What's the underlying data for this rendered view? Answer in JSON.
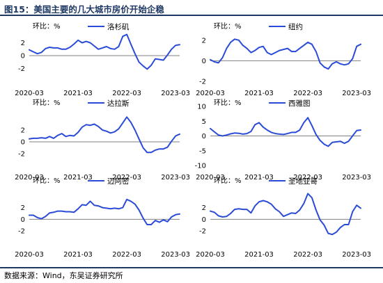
{
  "figure": {
    "title": "图15：美国主要的几大城市房价开始企稳",
    "source": "数据来源：Wind，东吴证券研究所"
  },
  "chart_data": [
    {
      "type": "line",
      "ylabel": "环比：%",
      "ylim": [
        -4,
        4
      ],
      "yticks": [
        -2,
        0,
        2
      ],
      "ytick_labels": [
        "-2",
        "0",
        "2"
      ],
      "xtick_labels": [
        "2020-03",
        "2021-03",
        "2022-03",
        "2023-03"
      ],
      "legend_position": "top",
      "color": "#2a4bd7",
      "series": [
        {
          "name": "洛杉矶",
          "x": [
            "2020-03",
            "2020-04",
            "2020-05",
            "2020-06",
            "2020-07",
            "2020-08",
            "2020-09",
            "2020-10",
            "2020-11",
            "2020-12",
            "2021-01",
            "2021-02",
            "2021-03",
            "2021-04",
            "2021-05",
            "2021-06",
            "2021-07",
            "2021-08",
            "2021-09",
            "2021-10",
            "2021-11",
            "2021-12",
            "2022-01",
            "2022-02",
            "2022-03",
            "2022-04",
            "2022-05",
            "2022-06",
            "2022-07",
            "2022-08",
            "2022-09",
            "2022-10",
            "2022-11",
            "2022-12",
            "2023-01",
            "2023-02",
            "2023-03",
            "2023-04"
          ],
          "values": [
            0.9,
            0.6,
            0.3,
            0.5,
            1.1,
            1.3,
            1.2,
            1.2,
            1.0,
            1.0,
            1.3,
            1.8,
            2.4,
            2.0,
            2.2,
            2.0,
            1.5,
            1.0,
            1.2,
            1.4,
            1.1,
            1.0,
            1.4,
            3.0,
            3.3,
            1.8,
            0.3,
            -1.0,
            -1.6,
            -2.1,
            -1.5,
            -0.5,
            -0.6,
            -0.7,
            0.1,
            1.0,
            1.6,
            1.7
          ]
        }
      ]
    },
    {
      "type": "line",
      "ylabel": "环比：%",
      "ylim": [
        -2,
        3
      ],
      "yticks": [
        -2,
        0,
        2
      ],
      "ytick_labels": [
        "-2",
        "0",
        "2"
      ],
      "xtick_labels": [
        "2020-03",
        "2021-03",
        "2022-03",
        "2023-03"
      ],
      "legend_position": "top",
      "color": "#2a4bd7",
      "series": [
        {
          "name": "纽约",
          "x": [
            "2020-03",
            "2020-04",
            "2020-05",
            "2020-06",
            "2020-07",
            "2020-08",
            "2020-09",
            "2020-10",
            "2020-11",
            "2020-12",
            "2021-01",
            "2021-02",
            "2021-03",
            "2021-04",
            "2021-05",
            "2021-06",
            "2021-07",
            "2021-08",
            "2021-09",
            "2021-10",
            "2021-11",
            "2021-12",
            "2022-01",
            "2022-02",
            "2022-03",
            "2022-04",
            "2022-05",
            "2022-06",
            "2022-07",
            "2022-08",
            "2022-09",
            "2022-10",
            "2022-11",
            "2022-12",
            "2023-01",
            "2023-02",
            "2023-03",
            "2023-04"
          ],
          "values": [
            0.1,
            -0.1,
            -0.2,
            0.3,
            1.2,
            1.8,
            2.1,
            2.0,
            1.5,
            1.2,
            0.8,
            1.0,
            1.3,
            1.4,
            0.8,
            0.6,
            0.8,
            1.0,
            1.1,
            1.2,
            0.9,
            0.9,
            1.2,
            1.5,
            1.8,
            1.6,
            0.9,
            -0.2,
            -0.6,
            -0.8,
            -0.3,
            -0.1,
            -0.3,
            -0.4,
            -0.3,
            0.2,
            1.4,
            1.6
          ]
        }
      ]
    },
    {
      "type": "line",
      "ylabel": "环比：%",
      "ylim": [
        -4,
        6
      ],
      "yticks": [
        -2,
        0,
        2
      ],
      "ytick_labels": [
        "-2",
        "0",
        "2"
      ],
      "xtick_labels": [
        "2020-03",
        "2021-03",
        "2022-03",
        "2023-03"
      ],
      "legend_position": "top",
      "color": "#2a4bd7",
      "series": [
        {
          "name": "达拉斯",
          "x": [
            "2020-03",
            "2020-04",
            "2020-05",
            "2020-06",
            "2020-07",
            "2020-08",
            "2020-09",
            "2020-10",
            "2020-11",
            "2020-12",
            "2021-01",
            "2021-02",
            "2021-03",
            "2021-04",
            "2021-05",
            "2021-06",
            "2021-07",
            "2021-08",
            "2021-09",
            "2021-10",
            "2021-11",
            "2021-12",
            "2022-01",
            "2022-02",
            "2022-03",
            "2022-04",
            "2022-05",
            "2022-06",
            "2022-07",
            "2022-08",
            "2022-09",
            "2022-10",
            "2022-11",
            "2022-12",
            "2023-01",
            "2023-02",
            "2023-03",
            "2023-04"
          ],
          "values": [
            0.5,
            0.6,
            0.6,
            0.7,
            0.6,
            0.9,
            0.6,
            1.1,
            1.4,
            0.9,
            1.1,
            1.0,
            1.6,
            2.5,
            2.9,
            2.8,
            3.0,
            2.6,
            2.0,
            1.8,
            1.5,
            1.7,
            2.2,
            3.2,
            4.2,
            3.3,
            2.0,
            0.5,
            -1.0,
            -1.8,
            -1.8,
            -1.4,
            -1.2,
            -1.2,
            -0.9,
            0.1,
            1.0,
            1.3
          ]
        }
      ]
    },
    {
      "type": "line",
      "ylabel": "环比：%",
      "ylim": [
        -10,
        10
      ],
      "yticks": [
        -10,
        -5,
        0,
        5,
        10
      ],
      "ytick_labels": [
        "-10",
        "-5",
        "0",
        "5",
        "10"
      ],
      "xtick_labels": [
        "2020-03",
        "2021-03",
        "2022-03",
        "2023-03"
      ],
      "legend_position": "top",
      "color": "#2a4bd7",
      "series": [
        {
          "name": "西雅图",
          "x": [
            "2020-03",
            "2020-04",
            "2020-05",
            "2020-06",
            "2020-07",
            "2020-08",
            "2020-09",
            "2020-10",
            "2020-11",
            "2020-12",
            "2021-01",
            "2021-02",
            "2021-03",
            "2021-04",
            "2021-05",
            "2021-06",
            "2021-07",
            "2021-08",
            "2021-09",
            "2021-10",
            "2021-11",
            "2021-12",
            "2022-01",
            "2022-02",
            "2022-03",
            "2022-04",
            "2022-05",
            "2022-06",
            "2022-07",
            "2022-08",
            "2022-09",
            "2022-10",
            "2022-11",
            "2022-12",
            "2023-01",
            "2023-02",
            "2023-03",
            "2023-04"
          ],
          "values": [
            2.5,
            1.4,
            0.3,
            0.0,
            0.3,
            0.7,
            1.0,
            0.9,
            0.6,
            0.8,
            1.5,
            3.8,
            4.5,
            3.0,
            2.0,
            1.2,
            0.8,
            0.6,
            0.5,
            0.8,
            1.2,
            1.2,
            2.0,
            4.5,
            6.2,
            3.5,
            0.5,
            -1.5,
            -2.8,
            -3.5,
            -2.2,
            -2.0,
            -1.8,
            -2.5,
            -1.8,
            0.0,
            1.8,
            2.0
          ]
        }
      ]
    },
    {
      "type": "line",
      "ylabel": "环比：%",
      "ylim": [
        -4,
        6
      ],
      "yticks": [
        -2,
        0,
        2
      ],
      "ytick_labels": [
        "-2",
        "0",
        "2"
      ],
      "xtick_labels": [
        "2020-03",
        "2021-03",
        "2022-03",
        "2023-03"
      ],
      "legend_position": "top",
      "color": "#2a4bd7",
      "series": [
        {
          "name": "迈阿密",
          "x": [
            "2020-03",
            "2020-04",
            "2020-05",
            "2020-06",
            "2020-07",
            "2020-08",
            "2020-09",
            "2020-10",
            "2020-11",
            "2020-12",
            "2021-01",
            "2021-02",
            "2021-03",
            "2021-04",
            "2021-05",
            "2021-06",
            "2021-07",
            "2021-08",
            "2021-09",
            "2021-10",
            "2021-11",
            "2021-12",
            "2022-01",
            "2022-02",
            "2022-03",
            "2022-04",
            "2022-05",
            "2022-06",
            "2022-07",
            "2022-08",
            "2022-09",
            "2022-10",
            "2022-11",
            "2022-12",
            "2023-01",
            "2023-02",
            "2023-03",
            "2023-04"
          ],
          "values": [
            0.7,
            0.7,
            0.3,
            0.1,
            0.5,
            1.1,
            1.2,
            1.4,
            1.4,
            1.3,
            1.3,
            1.2,
            1.8,
            2.5,
            2.4,
            3.1,
            2.4,
            2.3,
            2.0,
            1.9,
            1.8,
            1.9,
            1.8,
            2.0,
            3.4,
            3.1,
            2.6,
            1.6,
            0.2,
            -0.9,
            -0.9,
            -0.2,
            -0.5,
            -0.1,
            -0.4,
            0.4,
            0.8,
            0.9
          ]
        }
      ]
    },
    {
      "type": "line",
      "ylabel": "环比：%",
      "ylim": [
        -4,
        6
      ],
      "yticks": [
        -2,
        0,
        2
      ],
      "ytick_labels": [
        "-2",
        "0",
        "2"
      ],
      "xtick_labels": [
        "2020-03",
        "2021-03",
        "2022-03",
        "2023-03"
      ],
      "legend_position": "top",
      "color": "#2a4bd7",
      "series": [
        {
          "name": "圣地亚哥",
          "x": [
            "2020-03",
            "2020-04",
            "2020-05",
            "2020-06",
            "2020-07",
            "2020-08",
            "2020-09",
            "2020-10",
            "2020-11",
            "2020-12",
            "2021-01",
            "2021-02",
            "2021-03",
            "2021-04",
            "2021-05",
            "2021-06",
            "2021-07",
            "2021-08",
            "2021-09",
            "2021-10",
            "2021-11",
            "2021-12",
            "2022-01",
            "2022-02",
            "2022-03",
            "2022-04",
            "2022-05",
            "2022-06",
            "2022-07",
            "2022-08",
            "2022-09",
            "2022-10",
            "2022-11",
            "2022-12",
            "2023-01",
            "2023-02",
            "2023-03",
            "2023-04"
          ],
          "values": [
            1.4,
            1.2,
            0.6,
            0.4,
            0.5,
            1.0,
            1.7,
            1.8,
            1.7,
            1.7,
            1.1,
            2.3,
            3.0,
            3.2,
            3.0,
            2.6,
            1.8,
            1.3,
            0.5,
            0.8,
            1.1,
            1.0,
            1.6,
            2.7,
            4.4,
            3.7,
            1.6,
            -0.1,
            -1.0,
            -2.4,
            -2.6,
            -2.2,
            -1.4,
            -0.9,
            -0.9,
            1.3,
            2.4,
            1.9
          ]
        }
      ]
    }
  ]
}
